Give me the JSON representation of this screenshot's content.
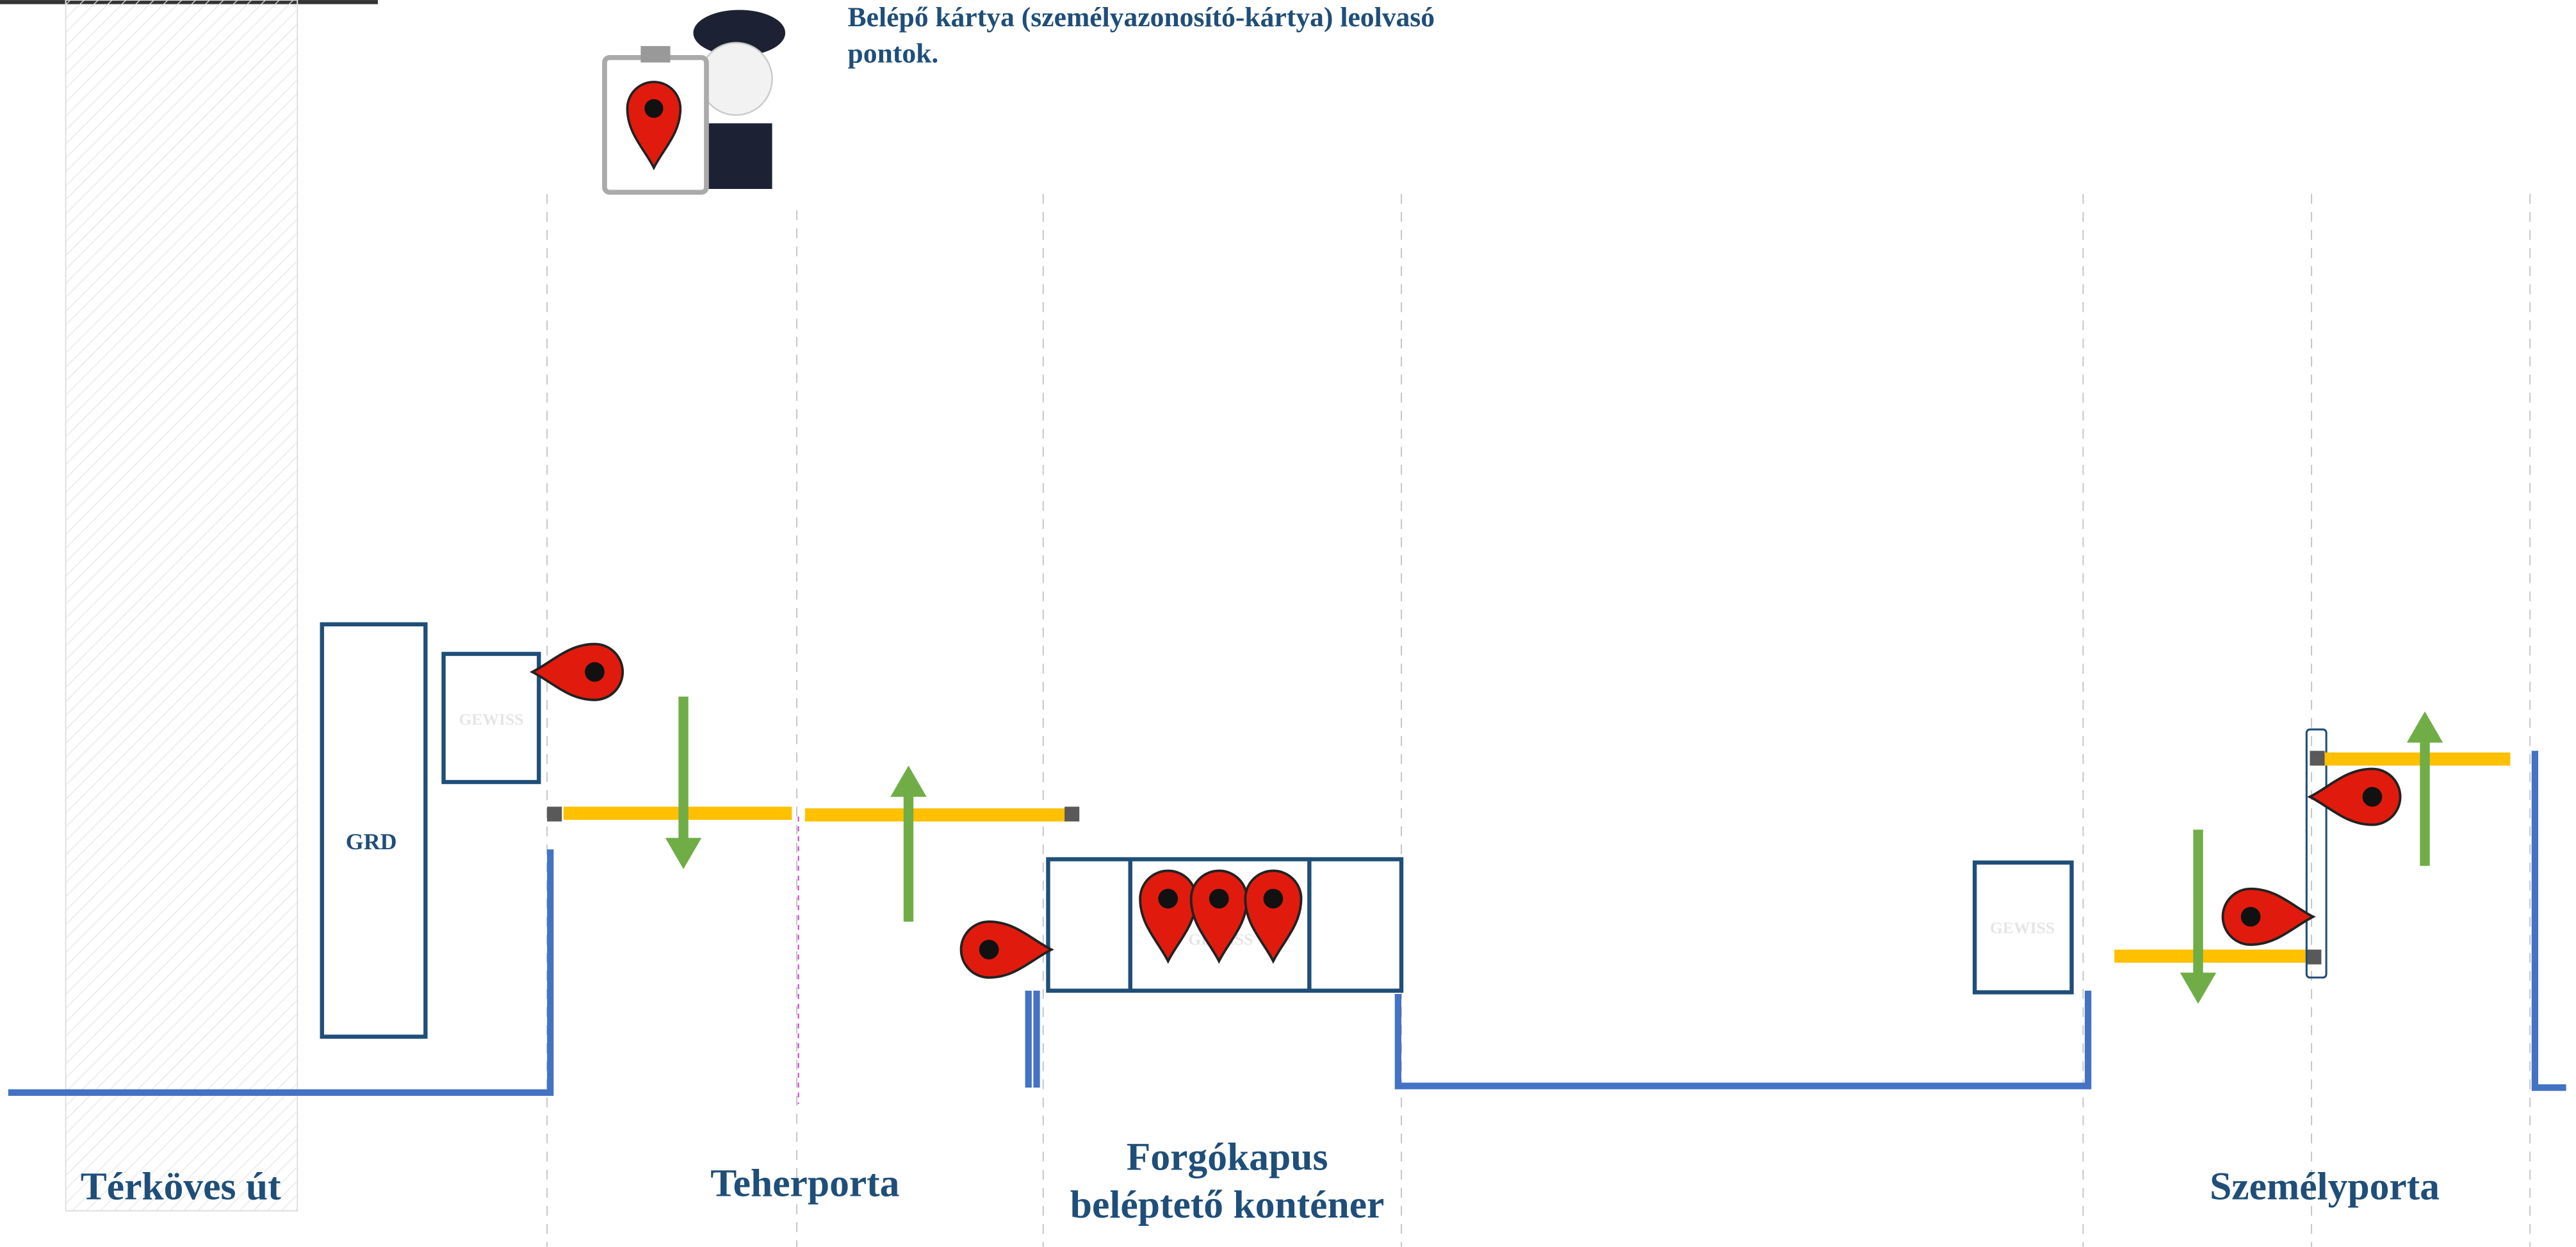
{
  "header": {
    "title_line1": "Belépő kártya (személyazonosító-kártya) leolvasó",
    "title_line2": "pontok."
  },
  "labels": {
    "road": "Térköves út",
    "guard": "GRD",
    "cargo_gate": "Teherporta",
    "container_line1": "Forgókapus",
    "container_line2": "beléptető konténer",
    "person_gate": "Személyporta",
    "logo": "GEWISS"
  }
}
